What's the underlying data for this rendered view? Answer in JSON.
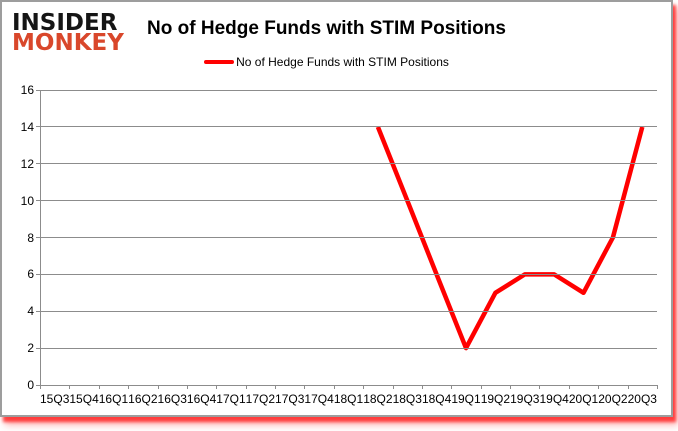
{
  "logo": {
    "line1": "INSIDER",
    "line2": "MONKEY",
    "accent_color": "#d9472b",
    "text_color": "#151515"
  },
  "header": {
    "title": "No of Hedge Funds with STIM Positions"
  },
  "legend": {
    "label": "No of Hedge Funds with STIM Positions",
    "marker_color": "#ff0000"
  },
  "colors": {
    "series_line": "#ff0000",
    "gridline": "#8c8c8c",
    "frame_border": "#9d9d9d",
    "background": "#ffffff",
    "text": "#000000"
  },
  "chart_data": {
    "type": "line",
    "title": "No of Hedge Funds with STIM Positions",
    "xlabel": "",
    "ylabel": "",
    "grid": true,
    "legend_position": "top",
    "legend_entries": [
      "No of Hedge Funds with STIM Positions"
    ],
    "ylim": [
      0,
      16
    ],
    "yticks": [
      0,
      2,
      4,
      6,
      8,
      10,
      12,
      14,
      16
    ],
    "categories": [
      "15Q3",
      "15Q4",
      "16Q1",
      "16Q2",
      "16Q3",
      "16Q4",
      "17Q1",
      "17Q2",
      "17Q3",
      "17Q4",
      "18Q1",
      "18Q2",
      "18Q3",
      "18Q4",
      "19Q1",
      "19Q2",
      "19Q3",
      "19Q4",
      "20Q1",
      "20Q2",
      "20Q3"
    ],
    "series": [
      {
        "name": "No of Hedge Funds with STIM Positions",
        "color": "#ff0000",
        "values": [
          null,
          null,
          null,
          null,
          null,
          null,
          null,
          null,
          null,
          null,
          null,
          14,
          10,
          6,
          2,
          5,
          6,
          6,
          5,
          8,
          14
        ]
      }
    ]
  }
}
